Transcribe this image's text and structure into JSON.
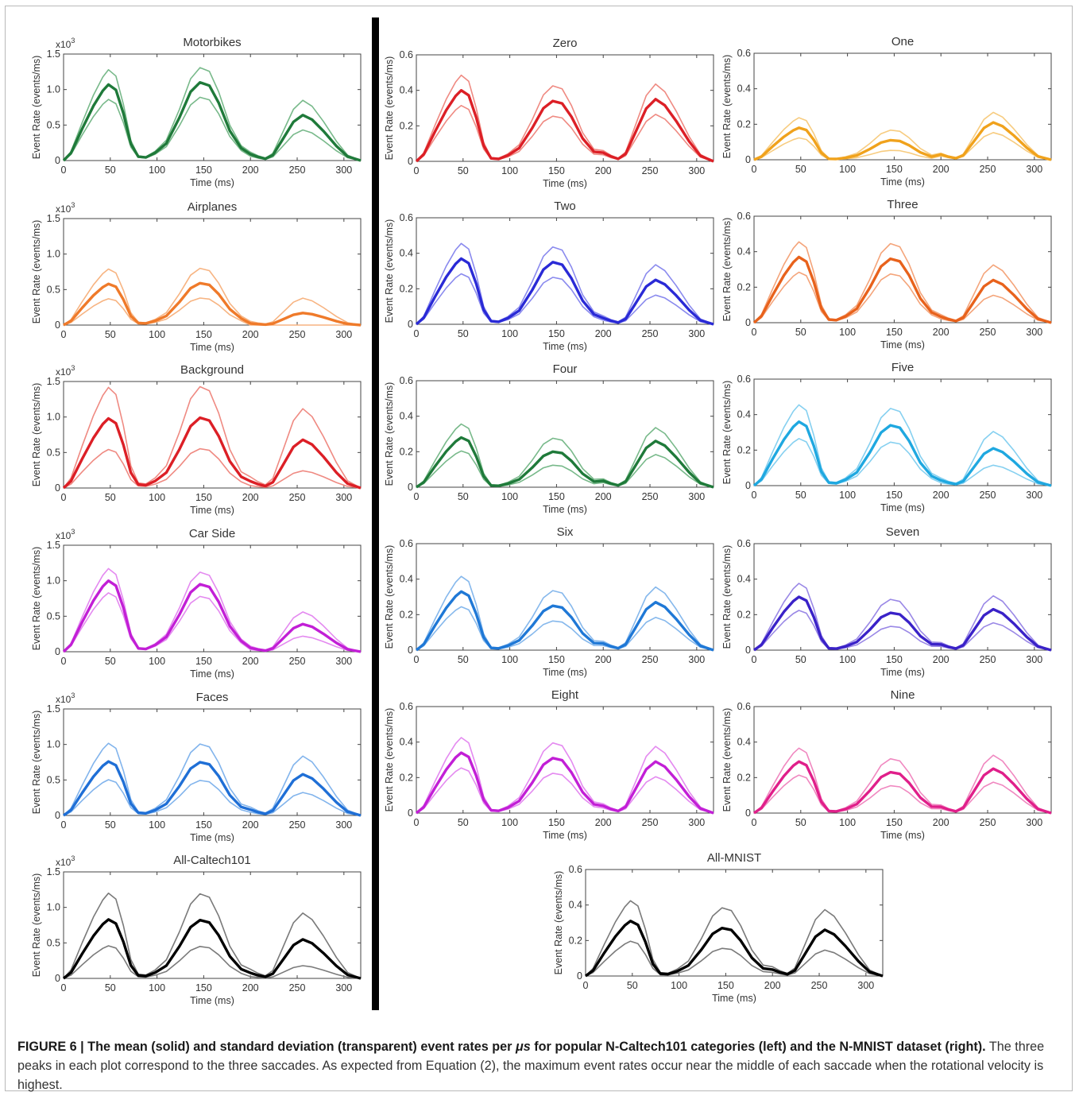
{
  "figure": {
    "caption_label": "FIGURE 6 | The mean (solid) and standard deviation (transparent) event rates per ",
    "caption_mu": "μs",
    "caption_bold_rest": " for popular N-Caltech101 categories (left) and the N-MNIST dataset (right).",
    "caption_text": " The three peaks in each plot correspond to the three saccades. As expected from Equation (2), the maximum event rates occur near the middle of each saccade when the rotational velocity is highest."
  },
  "chart_data": [
    {
      "type": "line",
      "title": "Motorbikes",
      "xlabel": "Time (ms)",
      "ylabel": "Event Rate (events/ms)",
      "y_multiplier": "x10",
      "y_multiplier_exp": "3",
      "xlim": [
        0,
        318
      ],
      "ylim": [
        0,
        1.5
      ],
      "xticks": [
        "0",
        "50",
        "100",
        "150",
        "200",
        "250",
        "300"
      ],
      "yticks": [
        "0",
        "0.5",
        "1.0",
        "1.5"
      ],
      "color": "#1f7a3a",
      "light_color": "#78b98a",
      "peaks": [
        1.07,
        1.1,
        0.64
      ],
      "spread": 0.22
    },
    {
      "type": "line",
      "title": "Airplanes",
      "xlabel": "Time (ms)",
      "ylabel": "Event Rate (events/ms)",
      "y_multiplier": "x10",
      "y_multiplier_exp": "3",
      "xlim": [
        0,
        318
      ],
      "ylim": [
        0,
        1.5
      ],
      "xticks": [
        "0",
        "50",
        "100",
        "150",
        "200",
        "250",
        "300"
      ],
      "yticks": [
        "0",
        "0.5",
        "1.0",
        "1.5"
      ],
      "color": "#ef7a2a",
      "light_color": "#f7b482",
      "peaks": [
        0.58,
        0.59,
        0.17
      ],
      "spread": 0.22
    },
    {
      "type": "line",
      "title": "Background",
      "xlabel": "Time (ms)",
      "ylabel": "Event Rate (events/ms)",
      "y_multiplier": "x10",
      "y_multiplier_exp": "3",
      "xlim": [
        0,
        318
      ],
      "ylim": [
        0,
        1.5
      ],
      "xticks": [
        "0",
        "50",
        "100",
        "150",
        "200",
        "250",
        "300"
      ],
      "yticks": [
        "0",
        "0.5",
        "1.0",
        "1.5"
      ],
      "color": "#dc1f26",
      "light_color": "#ef8a82",
      "peaks": [
        0.98,
        0.99,
        0.68
      ],
      "spread": 0.46
    },
    {
      "type": "line",
      "title": "Car Side",
      "xlabel": "Time (ms)",
      "ylabel": "Event Rate (events/ms)",
      "y_multiplier": "x10",
      "y_multiplier_exp": "3",
      "xlim": [
        0,
        318
      ],
      "ylim": [
        0,
        1.5
      ],
      "xticks": [
        "0",
        "50",
        "100",
        "150",
        "200",
        "250",
        "300"
      ],
      "yticks": [
        "0",
        "0.5",
        "1.0",
        "1.5"
      ],
      "color": "#c21fd6",
      "light_color": "#e48af0",
      "peaks": [
        1.0,
        0.95,
        0.39
      ],
      "spread": 0.18
    },
    {
      "type": "line",
      "title": "Faces",
      "xlabel": "Time (ms)",
      "ylabel": "Event Rate (events/ms)",
      "y_multiplier": "x10",
      "y_multiplier_exp": "3",
      "xlim": [
        0,
        318
      ],
      "ylim": [
        0,
        1.5
      ],
      "xticks": [
        "0",
        "50",
        "100",
        "150",
        "200",
        "250",
        "300"
      ],
      "yticks": [
        "0",
        "0.5",
        "1.0",
        "1.5"
      ],
      "color": "#1f6fd6",
      "light_color": "#82b4ec",
      "peaks": [
        0.76,
        0.75,
        0.58
      ],
      "spread": 0.27
    },
    {
      "type": "line",
      "title": "All-Caltech101",
      "xlabel": "Time (ms)",
      "ylabel": "Event Rate (events/ms)",
      "y_multiplier": "x10",
      "y_multiplier_exp": "3",
      "xlim": [
        0,
        318
      ],
      "ylim": [
        0,
        1.5
      ],
      "xticks": [
        "0",
        "50",
        "100",
        "150",
        "200",
        "250",
        "300"
      ],
      "yticks": [
        "0",
        "0.5",
        "1.0",
        "1.5"
      ],
      "color": "#000000",
      "light_color": "#7a7a7a",
      "peaks": [
        0.83,
        0.82,
        0.55
      ],
      "spread": 0.39
    },
    {
      "type": "line",
      "title": "Zero",
      "xlabel": "Time (ms)",
      "ylabel": "Event Rate (events/ms)",
      "xlim": [
        0,
        318
      ],
      "ylim": [
        0,
        0.6
      ],
      "xticks": [
        "0",
        "50",
        "100",
        "150",
        "200",
        "250",
        "300"
      ],
      "yticks": [
        "0",
        "0.2",
        "0.4",
        "0.6"
      ],
      "color": "#dc1f26",
      "light_color": "#ef8a82",
      "peaks": [
        0.4,
        0.34,
        0.35
      ],
      "spread": 0.09
    },
    {
      "type": "line",
      "title": "One",
      "xlabel": "Time (ms)",
      "ylabel": "Event Rate (events/ms)",
      "xlim": [
        0,
        318
      ],
      "ylim": [
        0,
        0.6
      ],
      "xticks": [
        "0",
        "50",
        "100",
        "150",
        "200",
        "250",
        "300"
      ],
      "yticks": [
        "0",
        "0.2",
        "0.4",
        "0.6"
      ],
      "color": "#f0a21c",
      "light_color": "#f7cc80",
      "peaks": [
        0.18,
        0.11,
        0.21
      ],
      "spread": 0.06
    },
    {
      "type": "line",
      "title": "Two",
      "xlabel": "Time (ms)",
      "ylabel": "Event Rate (events/ms)",
      "xlim": [
        0,
        318
      ],
      "ylim": [
        0,
        0.6
      ],
      "xticks": [
        "0",
        "50",
        "100",
        "150",
        "200",
        "250",
        "300"
      ],
      "yticks": [
        "0",
        "0.2",
        "0.4",
        "0.6"
      ],
      "color": "#2a2ad6",
      "light_color": "#8a8aee",
      "peaks": [
        0.37,
        0.35,
        0.25
      ],
      "spread": 0.09
    },
    {
      "type": "line",
      "title": "Three",
      "xlabel": "Time (ms)",
      "ylabel": "Event Rate (events/ms)",
      "xlim": [
        0,
        318
      ],
      "ylim": [
        0,
        0.6
      ],
      "xticks": [
        "0",
        "50",
        "100",
        "150",
        "200",
        "250",
        "300"
      ],
      "yticks": [
        "0",
        "0.2",
        "0.4",
        "0.6"
      ],
      "color": "#e8621c",
      "light_color": "#f4a47a",
      "peaks": [
        0.37,
        0.36,
        0.24
      ],
      "spread": 0.09
    },
    {
      "type": "line",
      "title": "Four",
      "xlabel": "Time (ms)",
      "ylabel": "Event Rate (events/ms)",
      "xlim": [
        0,
        318
      ],
      "ylim": [
        0,
        0.6
      ],
      "xticks": [
        "0",
        "50",
        "100",
        "150",
        "200",
        "250",
        "300"
      ],
      "yticks": [
        "0",
        "0.2",
        "0.4",
        "0.6"
      ],
      "color": "#1f7a3a",
      "light_color": "#78b98a",
      "peaks": [
        0.28,
        0.2,
        0.26
      ],
      "spread": 0.08
    },
    {
      "type": "line",
      "title": "Five",
      "xlabel": "Time (ms)",
      "ylabel": "Event Rate (events/ms)",
      "xlim": [
        0,
        318
      ],
      "ylim": [
        0,
        0.6
      ],
      "xticks": [
        "0",
        "50",
        "100",
        "150",
        "200",
        "250",
        "300"
      ],
      "yticks": [
        "0",
        "0.2",
        "0.4",
        "0.6"
      ],
      "color": "#1fa8e0",
      "light_color": "#86d0f0",
      "peaks": [
        0.36,
        0.34,
        0.21
      ],
      "spread": 0.1
    },
    {
      "type": "line",
      "title": "Six",
      "xlabel": "Time (ms)",
      "ylabel": "Event Rate (events/ms)",
      "xlim": [
        0,
        318
      ],
      "ylim": [
        0,
        0.6
      ],
      "xticks": [
        "0",
        "50",
        "100",
        "150",
        "200",
        "250",
        "300"
      ],
      "yticks": [
        "0",
        "0.2",
        "0.4",
        "0.6"
      ],
      "color": "#1f78d6",
      "light_color": "#86b8ec",
      "peaks": [
        0.33,
        0.25,
        0.27
      ],
      "spread": 0.09
    },
    {
      "type": "line",
      "title": "Seven",
      "xlabel": "Time (ms)",
      "ylabel": "Event Rate (events/ms)",
      "xlim": [
        0,
        318
      ],
      "ylim": [
        0,
        0.6
      ],
      "xticks": [
        "0",
        "50",
        "100",
        "150",
        "200",
        "250",
        "300"
      ],
      "yticks": [
        "0",
        "0.2",
        "0.4",
        "0.6"
      ],
      "color": "#3a22c8",
      "light_color": "#9a88e6",
      "peaks": [
        0.3,
        0.21,
        0.23
      ],
      "spread": 0.08
    },
    {
      "type": "line",
      "title": "Eight",
      "xlabel": "Time (ms)",
      "ylabel": "Event Rate (events/ms)",
      "xlim": [
        0,
        318
      ],
      "ylim": [
        0,
        0.6
      ],
      "xticks": [
        "0",
        "50",
        "100",
        "150",
        "200",
        "250",
        "300"
      ],
      "yticks": [
        "0",
        "0.2",
        "0.4",
        "0.6"
      ],
      "color": "#c21fd6",
      "light_color": "#e48af0",
      "peaks": [
        0.34,
        0.31,
        0.29
      ],
      "spread": 0.09
    },
    {
      "type": "line",
      "title": "Nine",
      "xlabel": "Time (ms)",
      "ylabel": "Event Rate (events/ms)",
      "xlim": [
        0,
        318
      ],
      "ylim": [
        0,
        0.6
      ],
      "xticks": [
        "0",
        "50",
        "100",
        "150",
        "200",
        "250",
        "300"
      ],
      "yticks": [
        "0",
        "0.2",
        "0.4",
        "0.6"
      ],
      "color": "#e01f8a",
      "light_color": "#f088c0",
      "peaks": [
        0.29,
        0.23,
        0.25
      ],
      "spread": 0.08
    },
    {
      "type": "line",
      "title": "All-MNIST",
      "xlabel": "Time (ms)",
      "ylabel": "Event Rate (events/ms)",
      "xlim": [
        0,
        318
      ],
      "ylim": [
        0,
        0.6
      ],
      "xticks": [
        "0",
        "50",
        "100",
        "150",
        "200",
        "250",
        "300"
      ],
      "yticks": [
        "0",
        "0.2",
        "0.4",
        "0.6"
      ],
      "color": "#000000",
      "light_color": "#7a7a7a",
      "peaks": [
        0.31,
        0.27,
        0.26
      ],
      "spread": 0.12
    }
  ]
}
